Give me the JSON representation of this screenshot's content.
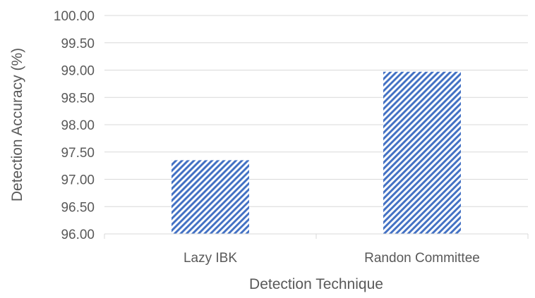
{
  "chart_data": {
    "type": "bar",
    "categories": [
      "Lazy IBK",
      "Randon Committee"
    ],
    "values": [
      97.35,
      98.97
    ],
    "xlabel": "Detection Technique",
    "ylabel": "Detection Accuracy (%)",
    "ylim": [
      96.0,
      100.0
    ],
    "yticks": [
      "96.00",
      "96.50",
      "97.00",
      "97.50",
      "98.00",
      "98.50",
      "99.00",
      "99.50",
      "100.00"
    ],
    "grid": true,
    "legend": "none",
    "bar_color": "#4472C4",
    "bar_pattern": "diagonal-stripes"
  }
}
